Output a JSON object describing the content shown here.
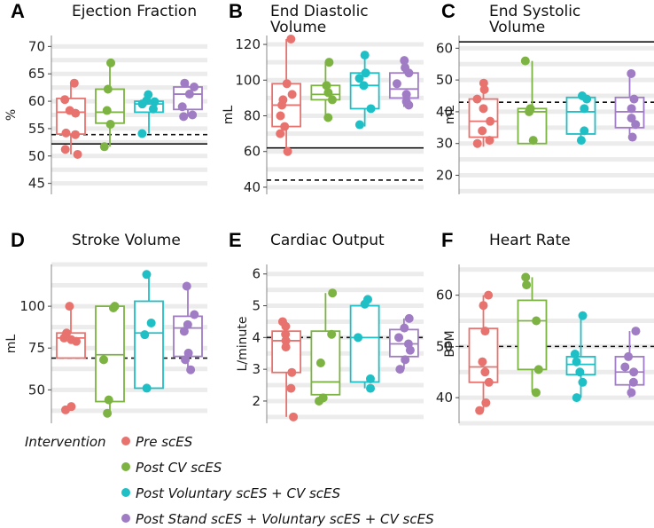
{
  "colors": [
    "#e8736e",
    "#7cb342",
    "#1fbfc6",
    "#a07cc5"
  ],
  "legend": {
    "title": "Intervention",
    "items": [
      "Pre scES",
      "Post CV scES",
      "Post Voluntary scES + CV scES",
      "Post Stand scES + Voluntary scES + CV scES"
    ]
  },
  "chart_data": [
    {
      "type": "box",
      "letter": "A",
      "title": [
        "Ejection Fraction"
      ],
      "ylabel": "%",
      "ylim": [
        43,
        72
      ],
      "ticks": [
        45,
        50,
        55,
        60,
        65,
        70
      ],
      "solid_line": 52.2,
      "dashed_line": 53.9,
      "groups": [
        {
          "q1": 54,
          "median": 58,
          "q3": 60.5,
          "wlo": 50.3,
          "whi": 63.4,
          "points": [
            63.3,
            60.3,
            58.3,
            57.8,
            54.2,
            53.9,
            51.2,
            50.3
          ]
        },
        {
          "q1": 56,
          "median": 58,
          "q3": 62.2,
          "wlo": 51.7,
          "whi": 67,
          "points": [
            67,
            62.2,
            58.3,
            55.8,
            51.7
          ]
        },
        {
          "q1": 58,
          "median": 59.5,
          "q3": 60,
          "wlo": 54.1,
          "whi": 61.2,
          "points": [
            61.2,
            60.1,
            59.9,
            59.5,
            58.6,
            54.1
          ]
        },
        {
          "q1": 58.5,
          "median": 61.3,
          "q3": 62.6,
          "wlo": 57.2,
          "whi": 63.3,
          "points": [
            63.3,
            62.6,
            61.3,
            59,
            57.2,
            57.5
          ]
        }
      ]
    },
    {
      "type": "box",
      "letter": "B",
      "title": [
        "End Diastolic",
        "Volume"
      ],
      "ylabel": "mL",
      "ylim": [
        36,
        125
      ],
      "ticks": [
        40,
        60,
        80,
        100,
        120
      ],
      "solid_line": 62,
      "dashed_line": 44,
      "groups": [
        {
          "q1": 74,
          "median": 86,
          "q3": 98,
          "wlo": 59,
          "whi": 123,
          "points": [
            123,
            98,
            92,
            89,
            86,
            80,
            74,
            70,
            60
          ]
        },
        {
          "q1": 89,
          "median": 92,
          "q3": 97,
          "wlo": 79,
          "whi": 110,
          "points": [
            110,
            97,
            93,
            89,
            79
          ]
        },
        {
          "q1": 84,
          "median": 97,
          "q3": 104,
          "wlo": 74,
          "whi": 114,
          "points": [
            114,
            104,
            101,
            97,
            84,
            75
          ]
        },
        {
          "q1": 90,
          "median": 95,
          "q3": 104,
          "wlo": 85,
          "whi": 111,
          "points": [
            111,
            107,
            104,
            98,
            92,
            88,
            86
          ]
        }
      ]
    },
    {
      "type": "box",
      "letter": "C",
      "title": [
        "End Systolic",
        "Volume"
      ],
      "ylabel": "mL",
      "ylim": [
        14,
        64
      ],
      "ticks": [
        20,
        30,
        40,
        50,
        60
      ],
      "solid_line": 62,
      "dashed_line": 43,
      "groups": [
        {
          "q1": 32,
          "median": 37,
          "q3": 44,
          "wlo": 29,
          "whi": 49,
          "points": [
            49,
            47,
            44,
            41,
            37,
            34,
            31,
            30
          ]
        },
        {
          "q1": 30,
          "median": 40,
          "q3": 41,
          "wlo": 30,
          "whi": 56,
          "points": [
            56,
            41,
            40,
            31
          ]
        },
        {
          "q1": 33,
          "median": 40,
          "q3": 44.5,
          "wlo": 30,
          "whi": 45,
          "points": [
            45,
            44,
            41,
            34,
            31
          ]
        },
        {
          "q1": 35,
          "median": 40,
          "q3": 44.5,
          "wlo": 32,
          "whi": 52,
          "points": [
            52,
            44,
            41,
            38,
            36,
            32
          ]
        }
      ]
    },
    {
      "type": "box",
      "letter": "D",
      "title": [
        "Stroke Volume"
      ],
      "ylabel": "mL",
      "ylim": [
        30,
        125
      ],
      "ticks": [
        50,
        75,
        100
      ],
      "solid_line": null,
      "dashed_line": 69,
      "groups": [
        {
          "q1": 69,
          "median": 81,
          "q3": 84,
          "wlo": 69,
          "whi": 100,
          "points": [
            100,
            84,
            82,
            81,
            80,
            79,
            40,
            38
          ]
        },
        {
          "q1": 43,
          "median": 71,
          "q3": 100,
          "wlo": 35,
          "whi": 100,
          "points": [
            100,
            99,
            68,
            44,
            36
          ]
        },
        {
          "q1": 51,
          "median": 84,
          "q3": 103,
          "wlo": 51,
          "whi": 119,
          "points": [
            119,
            90,
            83,
            51
          ]
        },
        {
          "q1": 70,
          "median": 87,
          "q3": 94,
          "wlo": 62,
          "whi": 112,
          "points": [
            112,
            95,
            89,
            85,
            72,
            68,
            62
          ]
        }
      ]
    },
    {
      "type": "box",
      "letter": "E",
      "title": [
        "Cardiac Output"
      ],
      "ylabel": "L/minute",
      "ylim": [
        1.3,
        6.3
      ],
      "ticks": [
        2,
        3,
        4,
        5,
        6
      ],
      "solid_line": null,
      "dashed_line": 4.0,
      "groups": [
        {
          "q1": 2.9,
          "median": 3.9,
          "q3": 4.2,
          "wlo": 1.5,
          "whi": 4.5,
          "points": [
            4.5,
            4.35,
            4.1,
            3.9,
            3.7,
            2.9,
            2.4,
            1.5
          ]
        },
        {
          "q1": 2.2,
          "median": 2.6,
          "q3": 4.2,
          "wlo": 2.0,
          "whi": 5.4,
          "points": [
            5.4,
            4.1,
            3.2,
            2.1,
            2.0
          ]
        },
        {
          "q1": 2.6,
          "median": 4.0,
          "q3": 5.0,
          "wlo": 2.4,
          "whi": 5.2,
          "points": [
            5.2,
            5.05,
            4.0,
            2.7,
            2.4
          ]
        },
        {
          "q1": 3.4,
          "median": 3.8,
          "q3": 4.25,
          "wlo": 3.0,
          "whi": 4.6,
          "points": [
            4.6,
            4.3,
            4.0,
            3.8,
            3.6,
            3.3,
            3.0
          ]
        }
      ]
    },
    {
      "type": "box",
      "letter": "F",
      "title": [
        "Heart Rate"
      ],
      "ylabel": "BPM",
      "ylim": [
        35,
        66
      ],
      "ticks": [
        40,
        50,
        60
      ],
      "solid_line": null,
      "dashed_line": 50,
      "groups": [
        {
          "q1": 43,
          "median": 46,
          "q3": 53.5,
          "wlo": 37.5,
          "whi": 60,
          "points": [
            60,
            58,
            53,
            47,
            45,
            43,
            39,
            37.5
          ]
        },
        {
          "q1": 45.5,
          "median": 55,
          "q3": 59,
          "wlo": 41,
          "whi": 63.5,
          "points": [
            63.5,
            62,
            55,
            45.5,
            41
          ]
        },
        {
          "q1": 44.5,
          "median": 46.5,
          "q3": 48,
          "wlo": 40,
          "whi": 56,
          "points": [
            56,
            48.5,
            47,
            45,
            43,
            40
          ]
        },
        {
          "q1": 42.5,
          "median": 45,
          "q3": 48,
          "wlo": 40,
          "whi": 53,
          "points": [
            53,
            48,
            46,
            45,
            43,
            41
          ]
        }
      ]
    }
  ]
}
